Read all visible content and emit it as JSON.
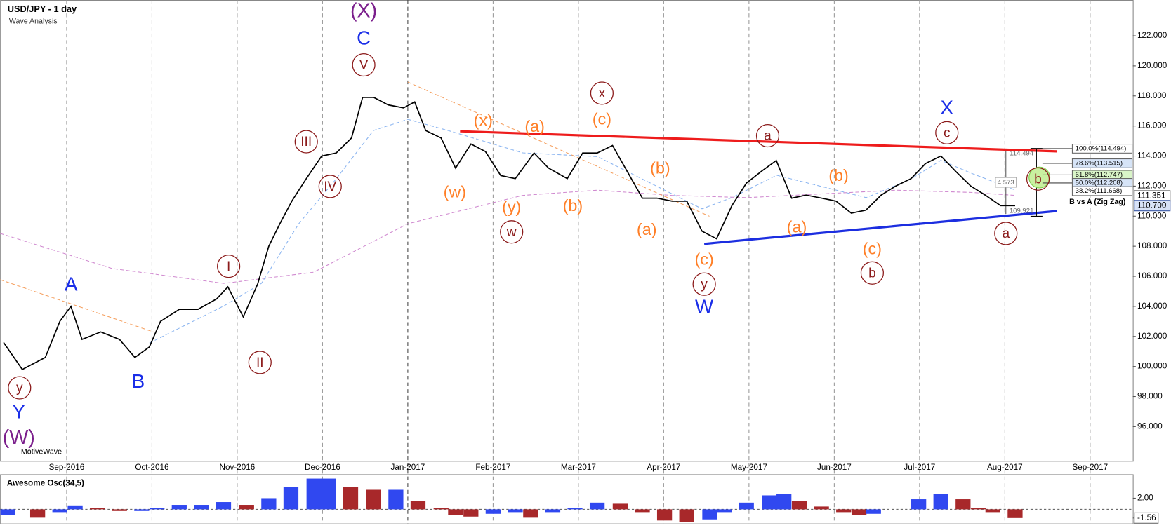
{
  "chart_data": [
    {
      "type": "line",
      "title": "USD/JPY - 1 day",
      "subtitle": "Wave Analysis",
      "source": "MotiveWave",
      "x": [
        -0.74,
        -0.52,
        -0.25,
        -0.08,
        0.05,
        0.18,
        0.4,
        0.62,
        0.8,
        0.97,
        1.1,
        1.32,
        1.54,
        1.76,
        1.89,
        2.07,
        2.24,
        2.37,
        2.5,
        2.64,
        2.81,
        2.99,
        3.16,
        3.34,
        3.47,
        3.6,
        3.77,
        3.95,
        4.08,
        4.21,
        4.39,
        4.56,
        4.74,
        4.91,
        5.09,
        5.26,
        5.48,
        5.65,
        5.87,
        6.05,
        6.22,
        6.4,
        6.57,
        6.75,
        6.92,
        7.1,
        7.27,
        7.45,
        7.62,
        7.8,
        7.97,
        8.15,
        8.32,
        8.5,
        8.67,
        8.85,
        9.02,
        9.2,
        9.37,
        9.55,
        9.72,
        9.9,
        10.07,
        10.25,
        10.42,
        10.6,
        10.77,
        10.95,
        11.12
      ],
      "series": [
        {
          "color": "#000000",
          "values": [
            101.6,
            99.8,
            100.6,
            103.0,
            104.0,
            101.8,
            102.3,
            101.8,
            100.6,
            101.3,
            103.0,
            103.8,
            103.8,
            104.5,
            105.3,
            103.3,
            105.5,
            108.0,
            109.5,
            111.0,
            112.5,
            114.0,
            114.2,
            115.2,
            117.9,
            117.9,
            117.4,
            117.2,
            117.6,
            115.7,
            115.2,
            113.2,
            114.8,
            114.3,
            112.7,
            112.5,
            114.2,
            113.2,
            112.5,
            114.2,
            114.2,
            114.7,
            113.0,
            111.2,
            111.2,
            111.0,
            111.0,
            109.0,
            108.5,
            110.7,
            112.2,
            113.0,
            113.7,
            111.2,
            111.4,
            111.2,
            111.0,
            110.2,
            110.4,
            111.4,
            112.0,
            112.5,
            113.5,
            114.0,
            113.0,
            112.0,
            111.4,
            110.7,
            110.7
          ]
        }
      ],
      "xlim": [
        -0.78,
        12.5
      ],
      "xticks": [
        {
          "value": 0,
          "label": "Sep-2016"
        },
        {
          "value": 1,
          "label": "Oct-2016"
        },
        {
          "value": 2,
          "label": "Nov-2016"
        },
        {
          "value": 3,
          "label": "Dec-2016"
        },
        {
          "value": 4,
          "label": "Jan-2017"
        },
        {
          "value": 5,
          "label": "Feb-2017"
        },
        {
          "value": 6,
          "label": "Mar-2017"
        },
        {
          "value": 7,
          "label": "Apr-2017"
        },
        {
          "value": 8,
          "label": "May-2017"
        },
        {
          "value": 9,
          "label": "Jun-2017"
        },
        {
          "value": 10,
          "label": "Jul-2017"
        },
        {
          "value": 11,
          "label": "Aug-2017"
        },
        {
          "value": 12,
          "label": "Sep-2017"
        }
      ],
      "ylim": [
        93.72,
        124.38
      ],
      "yticks": [
        {
          "value": 96,
          "label": "96.000"
        },
        {
          "value": 98,
          "label": "98.000"
        },
        {
          "value": 100,
          "label": "100.000"
        },
        {
          "value": 102,
          "label": "102.000"
        },
        {
          "value": 104,
          "label": "104.000"
        },
        {
          "value": 106,
          "label": "106.000"
        },
        {
          "value": 108,
          "label": "108.000"
        },
        {
          "value": 110,
          "label": "110.000"
        },
        {
          "value": 112,
          "label": "112.000"
        },
        {
          "value": 114,
          "label": "114.000"
        },
        {
          "value": 116,
          "label": "116.000"
        },
        {
          "value": 118,
          "label": "118.000"
        },
        {
          "value": 120,
          "label": "120.000"
        },
        {
          "value": 122,
          "label": "122.000"
        }
      ],
      "price_labels": [
        {
          "value": 111.351,
          "label": "111.351"
        },
        {
          "value": 110.7,
          "label": "110.700"
        }
      ],
      "fib_levels": [
        {
          "value": 114.494,
          "label": "100.0%(114.494)"
        },
        {
          "value": 113.515,
          "label": "78.6%(113.515)"
        },
        {
          "value": 112.747,
          "label": "61.8%(112.747)"
        },
        {
          "value": 112.208,
          "label": "50.0%(112.208)"
        },
        {
          "value": 111.668,
          "label": "38.2%(111.668)"
        }
      ],
      "study_label": "B vs A (Zig Zag)",
      "range": 4.573,
      "marker_labels": [
        114.494,
        109.921
      ],
      "wave_labels": {
        "primary": [
          "(X)",
          "(W)"
        ],
        "intermediate": [
          "C",
          "A",
          "B",
          "Y",
          "W",
          "X"
        ],
        "minor": [
          "V",
          "III",
          "IV",
          "I",
          "II",
          "y",
          "w",
          "x",
          "y",
          "a",
          "b",
          "c",
          "a",
          "b"
        ],
        "minute": [
          "(x)",
          "(w)",
          "(a)",
          "(c)",
          "(y)",
          "(b)",
          "(b)",
          "(a)",
          "(c)",
          "(a)",
          "(b)",
          "(c)"
        ]
      }
    },
    {
      "type": "bar",
      "title": "Awesome Osc(34,5)",
      "x": [
        -0.69,
        -0.34,
        -0.08,
        0.1,
        0.36,
        0.62,
        0.88,
        1.06,
        1.32,
        1.58,
        1.84,
        2.11,
        2.37,
        2.63,
        2.9,
        3.07,
        3.33,
        3.6,
        3.86,
        4.12,
        4.39,
        4.56,
        4.74,
        5.0,
        5.26,
        5.44,
        5.7,
        5.96,
        6.22,
        6.49,
        6.75,
        7.01,
        7.27,
        7.54,
        7.71,
        7.97,
        8.24,
        8.41,
        8.59,
        8.85,
        9.11,
        9.29,
        9.46,
        9.72,
        9.99,
        10.25,
        10.51,
        10.69,
        10.86,
        11.12
      ],
      "values": [
        -1.0,
        -1.5,
        -0.5,
        0.7,
        0.2,
        -0.3,
        -0.3,
        0.3,
        0.8,
        0.8,
        1.3,
        0.8,
        2.0,
        4.0,
        5.5,
        5.5,
        4.0,
        3.5,
        3.5,
        1.5,
        0.2,
        -1.0,
        -1.3,
        -0.8,
        -0.5,
        -1.5,
        -0.5,
        0.3,
        1.2,
        1.0,
        -0.5,
        -2.0,
        -2.3,
        -1.8,
        -0.5,
        1.2,
        2.5,
        2.8,
        1.5,
        0.5,
        -0.5,
        -1.0,
        -0.8,
        0,
        1.8,
        2.8,
        1.8,
        0.3,
        -0.5,
        -1.56
      ],
      "ylim": [
        -2.27,
        6.27
      ],
      "yticks": [
        {
          "value": 2,
          "label": "2.00"
        },
        {
          "value": -1.56,
          "label": "-1.56"
        }
      ]
    }
  ]
}
